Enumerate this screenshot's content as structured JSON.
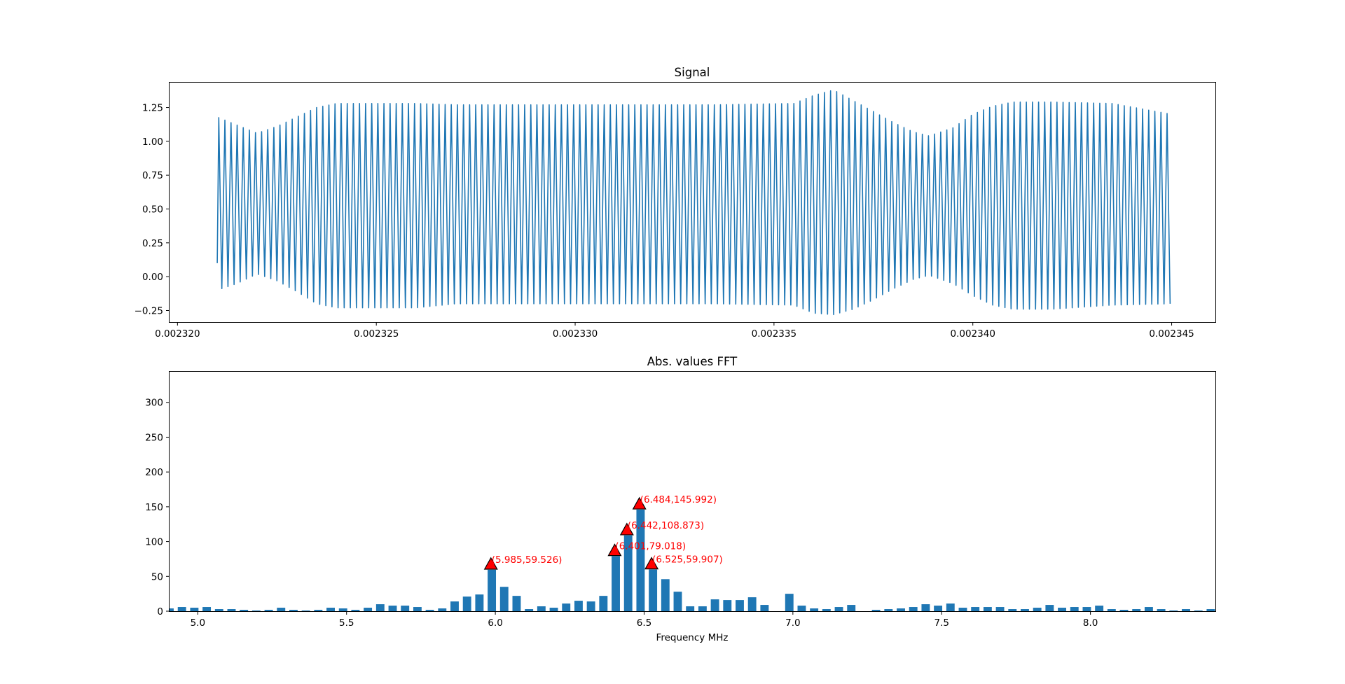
{
  "chart_data": [
    {
      "type": "line",
      "title": "Signal",
      "xlabel": "",
      "ylabel": "",
      "xlim": [
        0.0023198,
        0.0023461
      ],
      "ylim": [
        -0.3355,
        1.434
      ],
      "x_ticks": [
        0.00232,
        0.002325,
        0.00233,
        0.002335,
        0.00234,
        0.002345
      ],
      "x_tick_labels": [
        "0.002320",
        "0.002325",
        "0.002330",
        "0.002335",
        "0.002340",
        "0.002345"
      ],
      "y_ticks": [
        -0.25,
        0.0,
        0.25,
        0.5,
        0.75,
        1.0,
        1.25
      ],
      "y_tick_labels": [
        "−0.25",
        "0.00",
        "0.25",
        "0.50",
        "0.75",
        "1.00",
        "1.25"
      ],
      "x_start": 0.002321,
      "x_end": 0.002345,
      "carrier_frequency_mhz": 6.5,
      "series": [
        {
          "color": "#1f77b4",
          "envelope": [
            {
              "x": 0.002321,
              "max": 1.18,
              "min": -0.1
            },
            {
              "x": 0.0023215,
              "max": 1.12,
              "min": -0.05
            },
            {
              "x": 0.002322,
              "max": 1.06,
              "min": 0.02
            },
            {
              "x": 0.0023225,
              "max": 1.11,
              "min": -0.03
            },
            {
              "x": 0.002323,
              "max": 1.18,
              "min": -0.11
            },
            {
              "x": 0.0023235,
              "max": 1.25,
              "min": -0.2
            },
            {
              "x": 0.002324,
              "max": 1.28,
              "min": -0.23
            },
            {
              "x": 0.002326,
              "max": 1.28,
              "min": -0.23
            },
            {
              "x": 0.002327,
              "max": 1.27,
              "min": -0.2
            },
            {
              "x": 0.0023335,
              "max": 1.27,
              "min": -0.2
            },
            {
              "x": 0.0023355,
              "max": 1.28,
              "min": -0.21
            },
            {
              "x": 0.002336,
              "max": 1.34,
              "min": -0.27
            },
            {
              "x": 0.0023365,
              "max": 1.38,
              "min": -0.28
            },
            {
              "x": 0.002337,
              "max": 1.3,
              "min": -0.24
            },
            {
              "x": 0.0023375,
              "max": 1.22,
              "min": -0.17
            },
            {
              "x": 0.002338,
              "max": 1.14,
              "min": -0.09
            },
            {
              "x": 0.0023385,
              "max": 1.07,
              "min": -0.02
            },
            {
              "x": 0.0023389,
              "max": 1.04,
              "min": 0.01
            },
            {
              "x": 0.0023395,
              "max": 1.1,
              "min": -0.05
            },
            {
              "x": 0.00234,
              "max": 1.2,
              "min": -0.14
            },
            {
              "x": 0.0023405,
              "max": 1.26,
              "min": -0.21
            },
            {
              "x": 0.002341,
              "max": 1.29,
              "min": -0.24
            },
            {
              "x": 0.002342,
              "max": 1.29,
              "min": -0.24
            },
            {
              "x": 0.0023435,
              "max": 1.28,
              "min": -0.21
            },
            {
              "x": 0.002345,
              "max": 1.2,
              "min": -0.2
            }
          ]
        }
      ]
    },
    {
      "type": "bar",
      "title": "Abs. values FFT",
      "xlabel": "Frequency MHz",
      "ylabel": "",
      "xlim": [
        4.905,
        8.42
      ],
      "ylim": [
        0,
        344
      ],
      "x_ticks": [
        5.0,
        5.5,
        6.0,
        6.5,
        7.0,
        7.5,
        8.0
      ],
      "x_tick_labels": [
        "5.0",
        "5.5",
        "6.0",
        "6.5",
        "7.0",
        "7.5",
        "8.0"
      ],
      "y_ticks": [
        0,
        50,
        100,
        150,
        200,
        250,
        300
      ],
      "y_tick_labels": [
        "0",
        "50",
        "100",
        "150",
        "200",
        "250",
        "300"
      ],
      "bar_color": "#1f77b4",
      "bar_width_mhz": 0.028,
      "x_start": 4.905,
      "x_step": 0.04166,
      "values": [
        4,
        6,
        5,
        6,
        3,
        3,
        2,
        1,
        2,
        5,
        2,
        1,
        2,
        5,
        4,
        2,
        5,
        10,
        8,
        8,
        6,
        2,
        4,
        14,
        21,
        24,
        59.526,
        35,
        22,
        3,
        7,
        5,
        11,
        15,
        14,
        22,
        79.018,
        108.873,
        145.992,
        59.907,
        46,
        28,
        7,
        7,
        17,
        16,
        16,
        20,
        9,
        0,
        25,
        8,
        4,
        3,
        6,
        9,
        0,
        2,
        3,
        4,
        6,
        10,
        8,
        11,
        5,
        6,
        6,
        6,
        3,
        3,
        5,
        9,
        5,
        6,
        6,
        8,
        3,
        2,
        3,
        6,
        3,
        1,
        3,
        1,
        3
      ],
      "peaks": [
        {
          "x": 5.985,
          "y": 59.526,
          "label": "(5.985,59.526)"
        },
        {
          "x": 6.401,
          "y": 79.018,
          "label": "(6.401,79.018)"
        },
        {
          "x": 6.442,
          "y": 108.873,
          "label": "(6.442,108.873)"
        },
        {
          "x": 6.484,
          "y": 145.992,
          "label": "(6.484,145.992)"
        },
        {
          "x": 6.525,
          "y": 59.907,
          "label": "(6.525,59.907)"
        }
      ],
      "peak_marker_color": "#ff0000",
      "peak_label_color": "#ff0000"
    }
  ]
}
